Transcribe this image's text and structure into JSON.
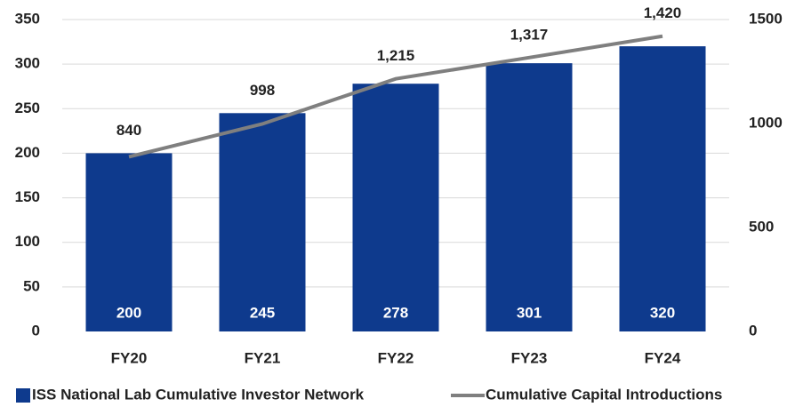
{
  "chart_data": {
    "type": "bar",
    "categories": [
      "FY20",
      "FY21",
      "FY22",
      "FY23",
      "FY24"
    ],
    "series": [
      {
        "name": "ISS National Lab Cumulative Investor Network",
        "color": "#0e3a8d",
        "values": [
          200,
          245,
          278,
          301,
          320
        ]
      },
      {
        "name": "Cumulative Capital Introductions",
        "color": "#7f7f7f",
        "type": "line",
        "axis": "y2",
        "values": [
          840,
          998,
          1215,
          1317,
          1420
        ],
        "value_labels": [
          "840",
          "998",
          "1,215",
          "1,317",
          "1,420"
        ]
      }
    ],
    "ylim": [
      0,
      350
    ],
    "yticks": [
      0,
      50,
      100,
      150,
      200,
      250,
      300,
      350
    ],
    "y2lim": [
      0,
      1500
    ],
    "y2ticks": [
      0,
      500,
      1000,
      1500
    ],
    "grid": true,
    "legend": "bottom"
  }
}
